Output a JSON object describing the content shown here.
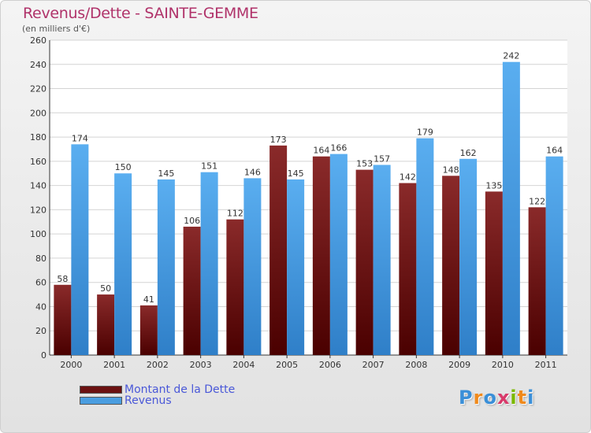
{
  "header": {
    "title": "Revenus/Dette - SAINTE-GEMME",
    "subtitle": "(en milliers d'€)"
  },
  "legend": {
    "items": [
      {
        "label": "Montant de la Dette",
        "color": "#6b1111"
      },
      {
        "label": "Revenus",
        "color": "#4a9de0"
      }
    ]
  },
  "logo": {
    "text": "Proxiti",
    "letter_colors": [
      "#3a8fd8",
      "#f08a1c",
      "#3a8fd8",
      "#d83a6a",
      "#7ab800",
      "#f08a1c",
      "#3a8fd8"
    ]
  },
  "colors": {
    "dette": "#6b1111",
    "revenus": "#4a9de0",
    "title": "#b0336a",
    "legend_text": "#4a58d8"
  },
  "chart_data": {
    "type": "bar",
    "title": "Revenus/Dette - SAINTE-GEMME",
    "subtitle": "(en milliers d'€)",
    "xlabel": "",
    "ylabel": "",
    "ylim": [
      0,
      260
    ],
    "yticks": [
      0,
      20,
      40,
      60,
      80,
      100,
      120,
      140,
      160,
      180,
      200,
      220,
      240,
      260
    ],
    "grid": true,
    "legend_position": "bottom-left",
    "categories": [
      "2000",
      "2001",
      "2002",
      "2003",
      "2004",
      "2005",
      "2006",
      "2007",
      "2008",
      "2009",
      "2010",
      "2011"
    ],
    "series": [
      {
        "name": "Montant de la Dette",
        "values": [
          58,
          50,
          41,
          106,
          112,
          173,
          164,
          153,
          142,
          148,
          135,
          122
        ]
      },
      {
        "name": "Revenus",
        "values": [
          174,
          150,
          145,
          151,
          146,
          145,
          166,
          157,
          179,
          162,
          242,
          164
        ]
      }
    ]
  }
}
